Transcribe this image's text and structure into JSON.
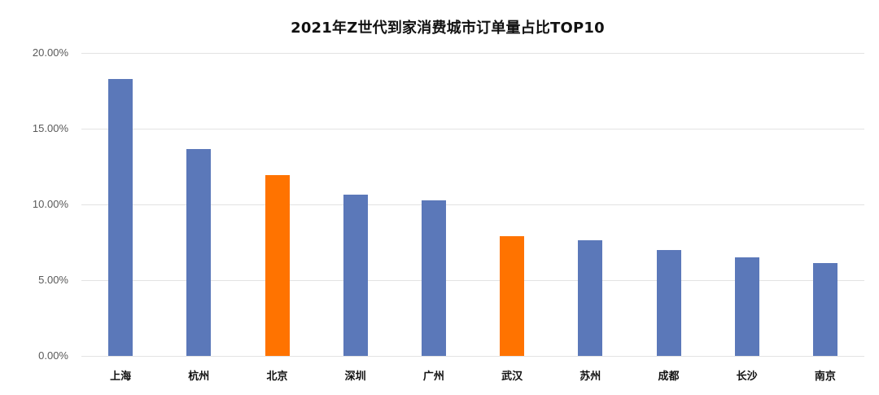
{
  "chart_data": {
    "type": "bar",
    "title": "2021年Z世代到家消费城市订单量占比TOP10",
    "xlabel": "",
    "ylabel": "",
    "categories": [
      "上海",
      "杭州",
      "北京",
      "深圳",
      "广州",
      "武汉",
      "苏州",
      "成都",
      "长沙",
      "南京"
    ],
    "values": [
      18.28,
      13.66,
      11.94,
      10.65,
      10.27,
      7.9,
      7.63,
      6.99,
      6.51,
      6.13
    ],
    "value_unit": "%",
    "bar_colors": [
      "#5b78b9",
      "#5b78b9",
      "#ff7300",
      "#5b78b9",
      "#5b78b9",
      "#ff7300",
      "#5b78b9",
      "#5b78b9",
      "#5b78b9",
      "#5b78b9"
    ],
    "ylim": [
      0,
      20
    ],
    "yticks": [
      "0.00%",
      "5.00%",
      "10.00%",
      "15.00%",
      "20.00%"
    ],
    "grid": true,
    "legend": null
  },
  "colors": {
    "primary_bar": "#5b78b9",
    "highlight_bar": "#ff7300",
    "grid": "#e3e3e3"
  }
}
